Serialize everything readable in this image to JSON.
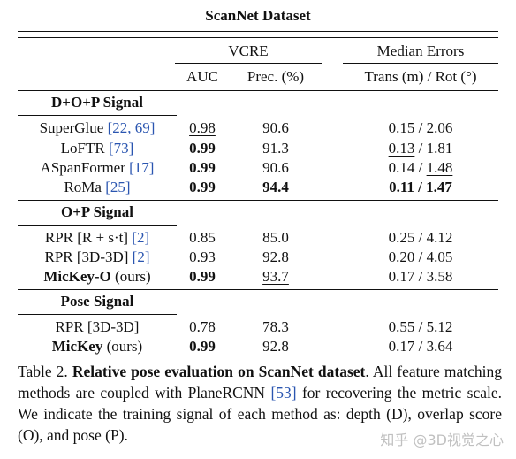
{
  "table": {
    "title": "ScanNet Dataset",
    "group_headers": {
      "vcre": "VCRE",
      "median": "Median Errors"
    },
    "columns": {
      "auc": "AUC",
      "prec": "Prec. (%)",
      "trans_rot": "Trans (m) / Rot (°)"
    },
    "sections": [
      {
        "label": "D+O+P Signal",
        "rows": [
          {
            "method": "SuperGlue ",
            "cite": "[22, 69]",
            "auc": "0.98",
            "prec": "90.6",
            "trans": "0.15",
            "rot": "2.06"
          },
          {
            "method": "LoFTR ",
            "cite": "[73]",
            "auc": "0.99",
            "prec": "91.3",
            "trans": "0.13",
            "rot": "1.81"
          },
          {
            "method": "ASpanFormer ",
            "cite": "[17]",
            "auc": "0.99",
            "prec": "90.6",
            "trans": "0.14",
            "rot": "1.48"
          },
          {
            "method": "RoMa ",
            "cite": "[25]",
            "auc": "0.99",
            "prec": "94.4",
            "trans": "0.11",
            "rot": "1.47"
          }
        ]
      },
      {
        "label": "O+P Signal",
        "rows": [
          {
            "method": "RPR [R + s·t] ",
            "cite": "[2]",
            "auc": "0.85",
            "prec": "85.0",
            "trans": "0.25",
            "rot": "4.12"
          },
          {
            "method": "RPR [3D-3D] ",
            "cite": "[2]",
            "auc": "0.93",
            "prec": "92.8",
            "trans": "0.20",
            "rot": "4.05"
          },
          {
            "method": "MicKey-O",
            "suffix": " (ours)",
            "auc": "0.99",
            "prec": "93.7",
            "trans": "0.17",
            "rot": "3.58"
          }
        ]
      },
      {
        "label": "Pose Signal",
        "rows": [
          {
            "method": "RPR [3D-3D]",
            "auc": "0.78",
            "prec": "78.3",
            "trans": "0.55",
            "rot": "5.12"
          },
          {
            "method": "MicKey",
            "suffix": " (ours)",
            "auc": "0.99",
            "prec": "92.8",
            "trans": "0.17",
            "rot": "3.64"
          }
        ]
      }
    ]
  },
  "caption": {
    "label": "Table 2.",
    "bold_title": "Relative pose evaluation on ScanNet dataset",
    "text_1": ". All feature matching methods are coupled with PlaneRCNN ",
    "cite": "[53]",
    "text_2": " for recovering the metric scale. We indicate the training signal of each method as: depth (D), overlap score (O), and pose (P)."
  },
  "watermark": "知乎 @3D视觉之心"
}
